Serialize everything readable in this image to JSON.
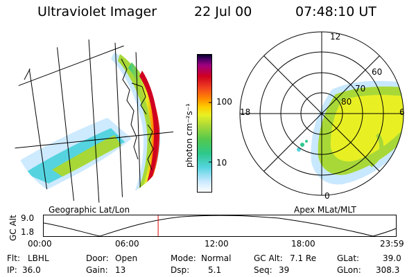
{
  "header": {
    "title": "Ultraviolet Imager",
    "date": "22 Jul 00",
    "time": "07:48:10 UT"
  },
  "colorbar": {
    "unit_label": "photon cm⁻²s⁻¹",
    "ticks": [
      "100",
      "10"
    ],
    "colors": [
      "#ffffff",
      "#c8e8ff",
      "#55d4e0",
      "#2ec88c",
      "#52c84e",
      "#a7d838",
      "#e8f024",
      "#ffcc00",
      "#ff8800",
      "#f04020",
      "#d00020",
      "#a00080",
      "#400060",
      "#000020"
    ]
  },
  "left_panel": {
    "caption": "Geographic Lat/Lon"
  },
  "right_panel": {
    "caption": "Apex MLat/MLT",
    "mlt_labels": {
      "top": "12",
      "left": "18",
      "right": "6",
      "bottom": "0"
    },
    "lat_labels": [
      "60",
      "70",
      "80"
    ]
  },
  "timeline": {
    "ylabel": "GC Alt",
    "y_ticks": [
      "9.0",
      "1.8"
    ],
    "x_ticks": [
      "00:00",
      "06:00",
      "12:00",
      "18:00",
      "23:59"
    ],
    "current_time": "07:48:10",
    "current_fraction": 0.325
  },
  "info": {
    "col1": [
      {
        "label": "Flt:",
        "value": "LBHL"
      },
      {
        "label": "IP:",
        "value": "36.0"
      }
    ],
    "col2": [
      {
        "label": "Door:",
        "value": "Open"
      },
      {
        "label": "Gain:",
        "value": "13"
      }
    ],
    "col3": [
      {
        "label": "Mode:",
        "value": "Normal"
      },
      {
        "label": "Dsp:",
        "value": "5.1"
      }
    ],
    "col4": [
      {
        "label": "GC Alt:",
        "value": "7.1 Re"
      },
      {
        "label": "Seq:",
        "value": "39"
      }
    ],
    "col5": [
      {
        "label": "GLat:",
        "value": "39.0"
      },
      {
        "label": "GLon:",
        "value": "308.3"
      }
    ]
  }
}
